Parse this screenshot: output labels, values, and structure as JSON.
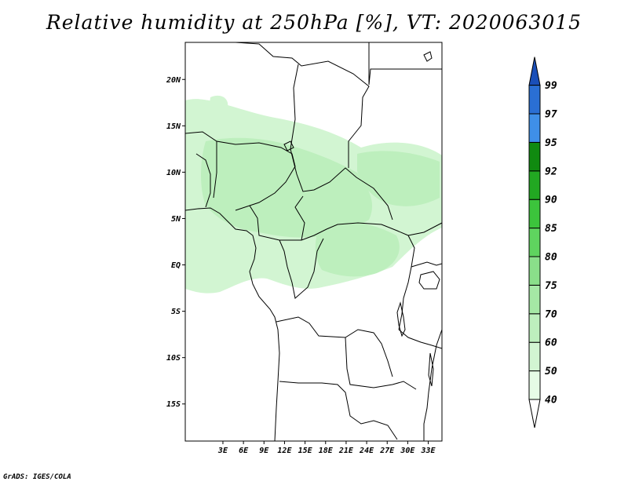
{
  "title": "Relative humidity at 250hPa [%], VT: 2020063015",
  "credit": "GrADS: IGES/COLA",
  "map": {
    "lat_range": [
      -19,
      24
    ],
    "lon_range": [
      -2.5,
      35
    ],
    "lat_ticks": [
      {
        "value": 20,
        "label": "20N"
      },
      {
        "value": 15,
        "label": "15N"
      },
      {
        "value": 10,
        "label": "10N"
      },
      {
        "value": 5,
        "label": "5N"
      },
      {
        "value": 0,
        "label": "EQ"
      },
      {
        "value": -5,
        "label": "5S"
      },
      {
        "value": -10,
        "label": "10S"
      },
      {
        "value": -15,
        "label": "15S"
      }
    ],
    "lon_ticks": [
      {
        "value": 3,
        "label": "3E"
      },
      {
        "value": 6,
        "label": "6E"
      },
      {
        "value": 9,
        "label": "9E"
      },
      {
        "value": 12,
        "label": "12E"
      },
      {
        "value": 15,
        "label": "15E"
      },
      {
        "value": 18,
        "label": "18E"
      },
      {
        "value": 21,
        "label": "21E"
      },
      {
        "value": 24,
        "label": "24E"
      },
      {
        "value": 27,
        "label": "27E"
      },
      {
        "value": 30,
        "label": "30E"
      },
      {
        "value": 33,
        "label": "33E"
      }
    ]
  },
  "colorbar": {
    "levels": [
      {
        "label": "40",
        "color": "#e6fbe6"
      },
      {
        "label": "50",
        "color": "#d2f5d2"
      },
      {
        "label": "60",
        "color": "#bdefbd"
      },
      {
        "label": "70",
        "color": "#a5e8a5"
      },
      {
        "label": "75",
        "color": "#8adf8a"
      },
      {
        "label": "80",
        "color": "#5fd45f"
      },
      {
        "label": "85",
        "color": "#3cc43c"
      },
      {
        "label": "90",
        "color": "#22a822"
      },
      {
        "label": "92",
        "color": "#108a10"
      },
      {
        "label": "95",
        "color": "#3f8fe8"
      },
      {
        "label": "97",
        "color": "#2a6fd4"
      },
      {
        "label": "99",
        "color": "#1a55c0"
      }
    ],
    "under_color": "#ffffff",
    "over_color": "#1a4fb8"
  },
  "field_colors": {
    "light": "#d2f5d2",
    "medium": "#bdefbd"
  }
}
